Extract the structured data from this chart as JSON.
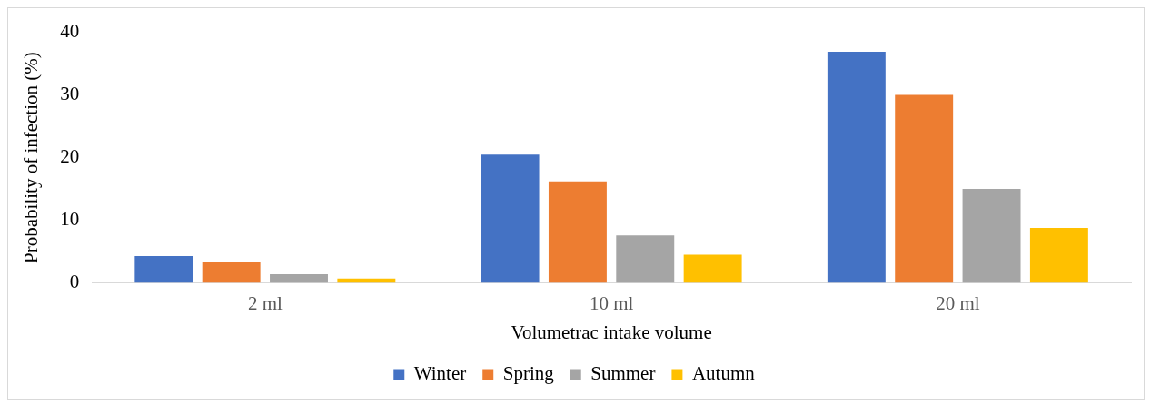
{
  "chart_data": {
    "type": "bar",
    "xlabel": "Volumetrac intake volume",
    "ylabel": "Probability of infection (%)",
    "categories": [
      "2 ml",
      "10 ml",
      "20 ml"
    ],
    "series": [
      {
        "name": "Winter",
        "color": "#4472c4",
        "values": [
          4.3,
          20.5,
          36.9
        ]
      },
      {
        "name": "Spring",
        "color": "#ed7d31",
        "values": [
          3.3,
          16.2,
          30
        ]
      },
      {
        "name": "Summer",
        "color": "#a5a5a5",
        "values": [
          1.4,
          7.6,
          15
        ]
      },
      {
        "name": "Autumn",
        "color": "#ffc000",
        "values": [
          0.7,
          4.5,
          8.8
        ]
      }
    ],
    "ylim": [
      0,
      40
    ],
    "yticks": [
      0,
      10,
      20,
      30,
      40
    ],
    "grid": false,
    "legend": "bottom"
  }
}
